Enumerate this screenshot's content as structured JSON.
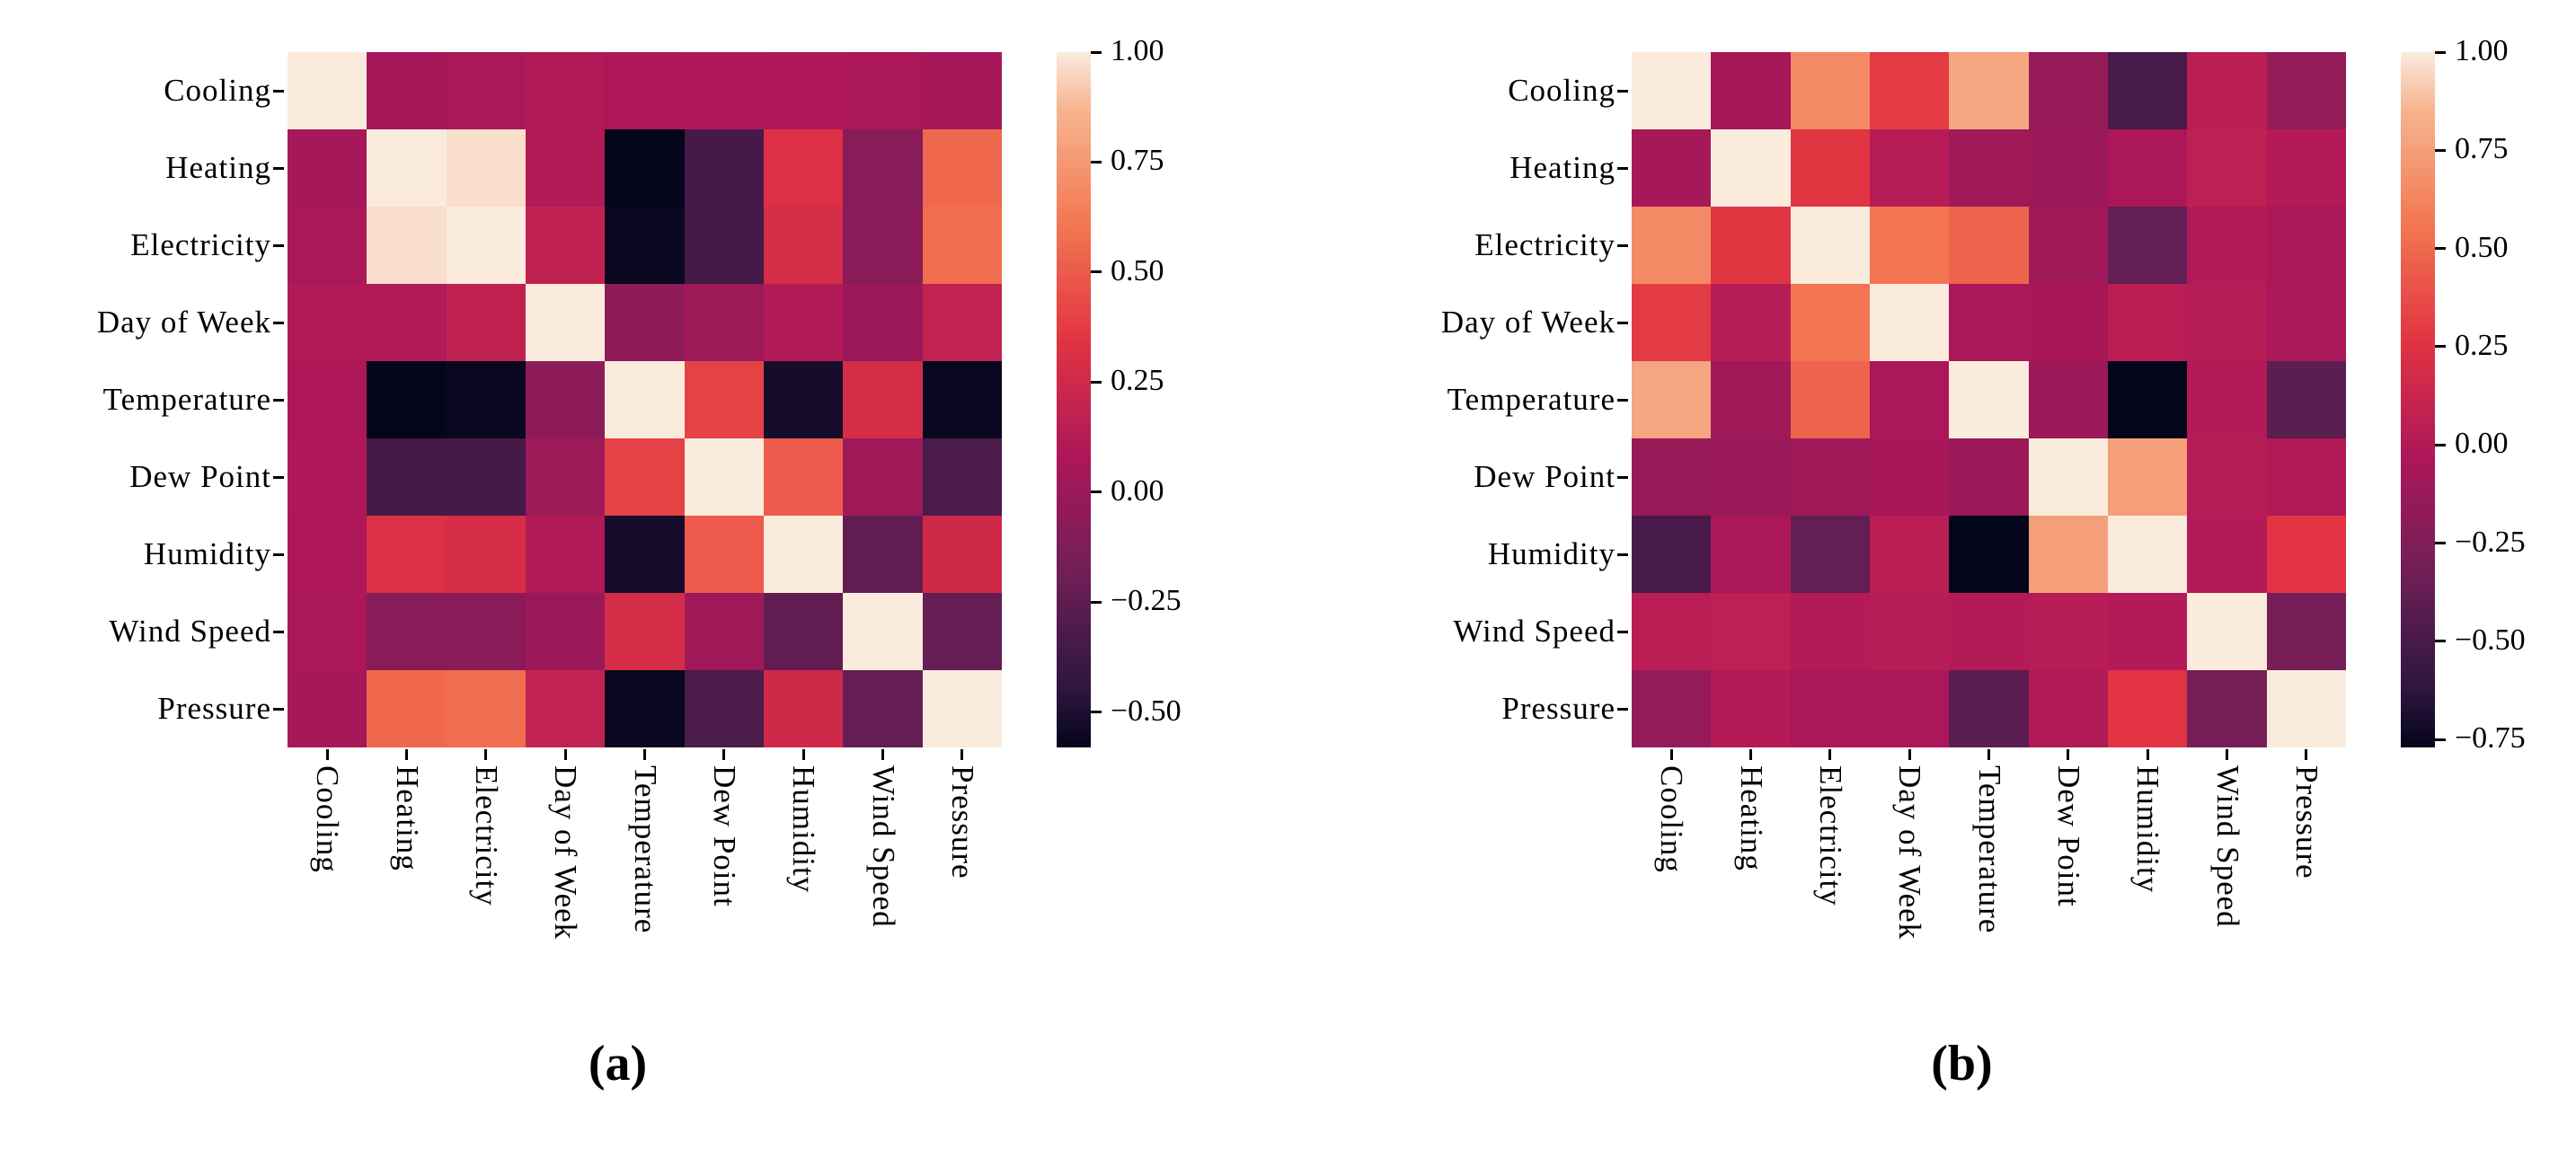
{
  "figure": {
    "background": "#FFFFFF",
    "colormap_name": "rocket",
    "diagonal_color": "#FAEBDD",
    "colormap_stops": [
      [
        0.0,
        "#03051A"
      ],
      [
        0.083,
        "#2F1540"
      ],
      [
        0.167,
        "#4C1B4B"
      ],
      [
        0.25,
        "#701F57"
      ],
      [
        0.333,
        "#8E1B58"
      ],
      [
        0.417,
        "#AD1759"
      ],
      [
        0.5,
        "#C7254E"
      ],
      [
        0.583,
        "#E13342"
      ],
      [
        0.667,
        "#EA544A"
      ],
      [
        0.75,
        "#F37651"
      ],
      [
        0.833,
        "#F49570"
      ],
      [
        0.917,
        "#F6B48F"
      ],
      [
        1.0,
        "#FAEBDD"
      ]
    ]
  },
  "chart_data": [
    {
      "type": "heatmap",
      "title": "(a)",
      "legend_position": "right-colorbar",
      "grid": false,
      "x_labels": [
        "Cooling",
        "Heating",
        "Electricity",
        "Day of Week",
        "Temperature",
        "Dew Point",
        "Humidity",
        "Wind Speed",
        "Pressure"
      ],
      "y_labels": [
        "Cooling",
        "Heating",
        "Electricity",
        "Day of Week",
        "Temperature",
        "Dew Point",
        "Humidity",
        "Wind Speed",
        "Pressure"
      ],
      "vmin": -0.58,
      "vmax": 1.0,
      "colorbar_ticks": [
        {
          "label": "1.00",
          "value": 1.0
        },
        {
          "label": "0.75",
          "value": 0.75
        },
        {
          "label": "0.50",
          "value": 0.5
        },
        {
          "label": "0.25",
          "value": 0.25
        },
        {
          "label": "0.00",
          "value": 0.0
        },
        {
          "label": "−0.25",
          "value": -0.25
        },
        {
          "label": "−0.50",
          "value": -0.5
        }
      ],
      "matrix": [
        [
          1.0,
          0.05,
          0.06,
          0.1,
          0.08,
          0.09,
          0.08,
          0.07,
          0.05
        ],
        [
          0.05,
          1.0,
          0.97,
          0.1,
          -0.58,
          -0.35,
          0.31,
          -0.08,
          0.55
        ],
        [
          0.06,
          0.97,
          1.0,
          0.17,
          -0.56,
          -0.35,
          0.28,
          -0.07,
          0.57
        ],
        [
          0.1,
          0.1,
          0.17,
          1.0,
          -0.06,
          0.01,
          0.1,
          0.0,
          0.18
        ],
        [
          0.08,
          -0.58,
          -0.56,
          -0.06,
          1.0,
          0.4,
          -0.52,
          0.28,
          -0.56
        ],
        [
          0.09,
          -0.35,
          -0.35,
          0.01,
          0.4,
          1.0,
          0.5,
          0.02,
          -0.32
        ],
        [
          0.08,
          0.31,
          0.28,
          0.1,
          -0.52,
          0.5,
          1.0,
          -0.24,
          0.25
        ],
        [
          0.07,
          -0.08,
          -0.07,
          0.0,
          0.28,
          0.02,
          -0.24,
          1.0,
          -0.23
        ],
        [
          0.05,
          0.55,
          0.57,
          0.18,
          -0.56,
          -0.32,
          0.25,
          -0.23,
          1.0
        ]
      ]
    },
    {
      "type": "heatmap",
      "title": "(b)",
      "legend_position": "right-colorbar",
      "grid": false,
      "x_labels": [
        "Cooling",
        "Heating",
        "Electricity",
        "Day of Week",
        "Temperature",
        "Dew Point",
        "Humidity",
        "Wind Speed",
        "Pressure"
      ],
      "y_labels": [
        "Cooling",
        "Heating",
        "Electricity",
        "Day of Week",
        "Temperature",
        "Dew Point",
        "Humidity",
        "Wind Speed",
        "Pressure"
      ],
      "vmin": -0.77,
      "vmax": 1.0,
      "colorbar_ticks": [
        {
          "label": "1.00",
          "value": 1.0
        },
        {
          "label": "0.75",
          "value": 0.75
        },
        {
          "label": "0.50",
          "value": 0.5
        },
        {
          "label": "0.25",
          "value": 0.25
        },
        {
          "label": "0.00",
          "value": 0.0
        },
        {
          "label": "−0.25",
          "value": -0.25
        },
        {
          "label": "−0.50",
          "value": -0.5
        },
        {
          "label": "−0.75",
          "value": -0.75
        }
      ],
      "matrix": [
        [
          1.0,
          -0.06,
          0.65,
          0.3,
          0.78,
          -0.14,
          -0.5,
          0.04,
          -0.15
        ],
        [
          -0.06,
          1.0,
          0.27,
          0.02,
          -0.09,
          -0.12,
          -0.04,
          0.06,
          0.01
        ],
        [
          0.65,
          0.27,
          1.0,
          0.55,
          0.48,
          -0.09,
          -0.38,
          0.0,
          -0.04
        ],
        [
          0.3,
          0.02,
          0.55,
          1.0,
          -0.04,
          -0.05,
          0.04,
          0.02,
          -0.04
        ],
        [
          0.78,
          -0.09,
          0.48,
          -0.04,
          1.0,
          -0.12,
          -0.77,
          0.0,
          -0.41
        ],
        [
          -0.14,
          -0.12,
          -0.09,
          -0.05,
          -0.12,
          1.0,
          0.75,
          0.02,
          -0.01
        ],
        [
          -0.5,
          -0.04,
          -0.38,
          0.04,
          -0.77,
          0.75,
          1.0,
          0.0,
          0.26
        ],
        [
          0.04,
          0.06,
          0.0,
          0.02,
          0.0,
          0.02,
          0.0,
          1.0,
          -0.3
        ],
        [
          -0.15,
          0.01,
          -0.04,
          -0.04,
          -0.41,
          -0.01,
          0.26,
          -0.3,
          1.0
        ]
      ]
    }
  ]
}
